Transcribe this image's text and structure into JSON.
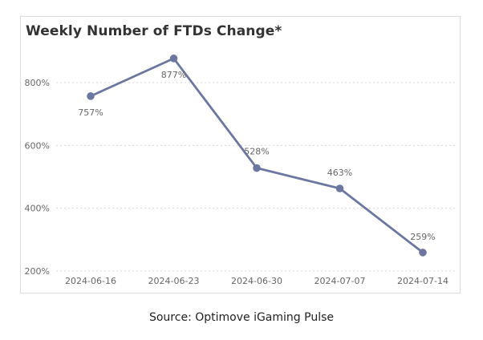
{
  "chart_data": {
    "type": "line",
    "title": "Weekly Number of FTDs Change*",
    "categories": [
      "2024-06-16",
      "2024-06-23",
      "2024-06-30",
      "2024-07-07",
      "2024-07-14"
    ],
    "series": [
      {
        "values": [
          757,
          877,
          528,
          463,
          259
        ],
        "labels": [
          "757%",
          "877%",
          "528%",
          "463%",
          "259%"
        ],
        "color": "#6b77a0"
      }
    ],
    "yticks": [
      {
        "value": 200,
        "label": "200%"
      },
      {
        "value": 400,
        "label": "400%"
      },
      {
        "value": 600,
        "label": "600%"
      },
      {
        "value": 800,
        "label": "800%"
      }
    ],
    "ylim": [
      190,
      900
    ],
    "grid": true,
    "xlabel": "",
    "ylabel": ""
  },
  "source": "Source: Optimove iGaming Pulse"
}
